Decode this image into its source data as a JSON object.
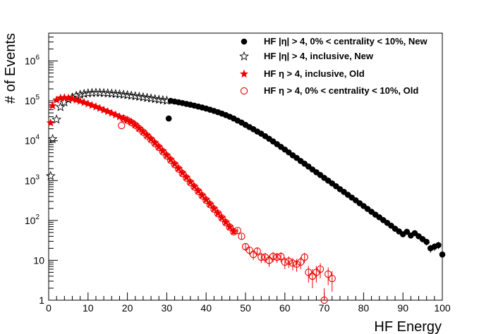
{
  "chart_data": {
    "type": "scatter",
    "xlabel": "HF Energy",
    "ylabel": "# of Events",
    "xlim": [
      0,
      100
    ],
    "ylim": [
      1,
      5000000
    ],
    "yscale": "log",
    "x_ticks": [
      "0",
      "10",
      "20",
      "30",
      "40",
      "50",
      "60",
      "70",
      "80",
      "90",
      "100"
    ],
    "y_ticks": [
      {
        "base": "1",
        "exp": ""
      },
      {
        "base": "10",
        "exp": ""
      },
      {
        "base": "10",
        "exp": "2"
      },
      {
        "base": "10",
        "exp": "3"
      },
      {
        "base": "10",
        "exp": "4"
      },
      {
        "base": "10",
        "exp": "5"
      },
      {
        "base": "10",
        "exp": "6"
      }
    ],
    "legend_position": "top-right",
    "colors": {
      "new": "#000000",
      "old": "#ee0000"
    },
    "series": [
      {
        "name": "HF |η| > 4, 0% < centrality < 10%, New",
        "marker": "filled-circle",
        "color": "#000000",
        "points": [
          [
            30.5,
            36000
          ],
          [
            31,
            100000
          ],
          [
            32,
            96000
          ],
          [
            33,
            92000
          ],
          [
            34,
            88000
          ],
          [
            35,
            84000
          ],
          [
            36,
            80000
          ],
          [
            37,
            76000
          ],
          [
            38,
            72000
          ],
          [
            39,
            68000
          ],
          [
            40,
            64000
          ],
          [
            41,
            60000
          ],
          [
            42,
            56000
          ],
          [
            43,
            52000
          ],
          [
            44,
            48000
          ],
          [
            45,
            44000
          ],
          [
            46,
            40000
          ],
          [
            47,
            36000
          ],
          [
            48,
            32000
          ],
          [
            49,
            28500
          ],
          [
            50,
            25000
          ],
          [
            51,
            22000
          ],
          [
            52,
            19500
          ],
          [
            53,
            17000
          ],
          [
            54,
            15000
          ],
          [
            55,
            13000
          ],
          [
            56,
            11200
          ],
          [
            57,
            9600
          ],
          [
            58,
            8200
          ],
          [
            59,
            7000
          ],
          [
            60,
            6000
          ],
          [
            61,
            5100
          ],
          [
            62,
            4300
          ],
          [
            63,
            3700
          ],
          [
            64,
            3100
          ],
          [
            65,
            2650
          ],
          [
            66,
            2250
          ],
          [
            67,
            1900
          ],
          [
            68,
            1620
          ],
          [
            69,
            1380
          ],
          [
            70,
            1170
          ],
          [
            71,
            1000
          ],
          [
            72,
            850
          ],
          [
            73,
            720
          ],
          [
            74,
            610
          ],
          [
            75,
            520
          ],
          [
            76,
            440
          ],
          [
            77,
            375
          ],
          [
            78,
            320
          ],
          [
            79,
            270
          ],
          [
            80,
            230
          ],
          [
            81,
            195
          ],
          [
            82,
            165
          ],
          [
            83,
            140
          ],
          [
            84,
            120
          ],
          [
            85,
            102
          ],
          [
            86,
            87
          ],
          [
            87,
            74
          ],
          [
            88,
            62
          ],
          [
            89,
            53
          ],
          [
            90,
            45
          ],
          [
            91,
            52
          ],
          [
            92,
            42
          ],
          [
            93,
            48
          ],
          [
            94,
            40
          ],
          [
            95,
            34
          ],
          [
            96,
            29
          ],
          [
            97,
            20
          ],
          [
            98,
            22
          ],
          [
            99,
            24
          ],
          [
            100,
            14
          ]
        ]
      },
      {
        "name": "HF |η| > 4, inclusive, New",
        "marker": "open-star",
        "color": "#000000",
        "points": [
          [
            0.5,
            1300
          ],
          [
            1,
            11000
          ],
          [
            2,
            34000
          ],
          [
            3,
            70000
          ],
          [
            4,
            92000
          ],
          [
            5,
            108000
          ],
          [
            6,
            122000
          ],
          [
            7,
            134000
          ],
          [
            8,
            143000
          ],
          [
            9,
            150000
          ],
          [
            10,
            155000
          ],
          [
            11,
            158000
          ],
          [
            12,
            160000
          ],
          [
            13,
            159000
          ],
          [
            14,
            157000
          ],
          [
            15,
            155000
          ],
          [
            16,
            152000
          ],
          [
            17,
            149000
          ],
          [
            18,
            146000
          ],
          [
            19,
            143000
          ],
          [
            20,
            139000
          ],
          [
            21,
            135000
          ],
          [
            22,
            131000
          ],
          [
            23,
            127000
          ],
          [
            24,
            123000
          ],
          [
            25,
            119000
          ],
          [
            26,
            115000
          ],
          [
            27,
            111000
          ],
          [
            28,
            107000
          ],
          [
            29,
            104000
          ],
          [
            30,
            101000
          ]
        ]
      },
      {
        "name": "HF η > 4, inclusive, Old",
        "marker": "filled-star",
        "color": "#ee0000",
        "points": [
          [
            0.5,
            28000
          ],
          [
            1,
            75000
          ],
          [
            2,
            105000
          ],
          [
            3,
            118000
          ],
          [
            4,
            121000
          ],
          [
            5,
            118000
          ],
          [
            6,
            112000
          ],
          [
            7,
            105000
          ],
          [
            8,
            98000
          ],
          [
            9,
            91000
          ],
          [
            10,
            84000
          ],
          [
            11,
            77000
          ],
          [
            12,
            71000
          ],
          [
            13,
            65000
          ],
          [
            14,
            59000
          ],
          [
            15,
            54000
          ],
          [
            16,
            49000
          ],
          [
            17,
            44500
          ],
          [
            18,
            40000
          ],
          [
            19,
            36500
          ],
          [
            20,
            33000
          ],
          [
            21,
            29500
          ],
          [
            22,
            25000
          ],
          [
            23,
            20500
          ],
          [
            24,
            16800
          ],
          [
            25,
            13600
          ],
          [
            26,
            11000
          ],
          [
            27,
            8800
          ],
          [
            28,
            7000
          ],
          [
            29,
            5500
          ],
          [
            30,
            4300
          ],
          [
            31,
            3350
          ],
          [
            32,
            2600
          ],
          [
            33,
            2000
          ],
          [
            34,
            1550
          ],
          [
            35,
            1200
          ],
          [
            36,
            920
          ],
          [
            37,
            710
          ],
          [
            38,
            550
          ],
          [
            39,
            425
          ],
          [
            40,
            330
          ],
          [
            41,
            255
          ],
          [
            42,
            197
          ],
          [
            43,
            152
          ],
          [
            44,
            117
          ],
          [
            45,
            90
          ],
          [
            46,
            69
          ],
          [
            47,
            53
          ]
        ]
      },
      {
        "name": "HF η > 4, 0% < centrality < 10%, Old",
        "marker": "open-circle",
        "color": "#ee0000",
        "points": [
          [
            18.5,
            24000
          ],
          [
            19,
            36000
          ],
          [
            20,
            32500
          ],
          [
            21,
            28500
          ],
          [
            22,
            24500
          ],
          [
            23,
            20000
          ],
          [
            24,
            16400
          ],
          [
            25,
            13200
          ],
          [
            26,
            10600
          ],
          [
            27,
            8500
          ],
          [
            28,
            6800
          ],
          [
            29,
            5300
          ],
          [
            30,
            4150
          ],
          [
            31,
            3250
          ],
          [
            32,
            2520
          ],
          [
            33,
            1950
          ],
          [
            34,
            1500
          ],
          [
            35,
            1160
          ],
          [
            36,
            890
          ],
          [
            37,
            690
          ],
          [
            38,
            535
          ],
          [
            39,
            415
          ],
          [
            40,
            322
          ],
          [
            41,
            250
          ],
          [
            42,
            193
          ],
          [
            43,
            149
          ],
          [
            44,
            115
          ],
          [
            45,
            88
          ],
          [
            46,
            68
          ],
          [
            47,
            52
          ],
          [
            48,
            56
          ],
          [
            49,
            40
          ],
          [
            50,
            22
          ],
          [
            51,
            18
          ],
          [
            52,
            14
          ],
          [
            53,
            17
          ],
          [
            54,
            12
          ],
          [
            55,
            12
          ],
          [
            56,
            10
          ],
          [
            57,
            12.5
          ],
          [
            58,
            12
          ],
          [
            59,
            12.5
          ],
          [
            60,
            9
          ],
          [
            61,
            9.5
          ],
          [
            62,
            8.5
          ],
          [
            63,
            8
          ],
          [
            64,
            9
          ],
          [
            65,
            12
          ],
          [
            66,
            5
          ],
          [
            67,
            4
          ],
          [
            68,
            5
          ],
          [
            69,
            6
          ],
          [
            70,
            1
          ],
          [
            71,
            4.5
          ],
          [
            72,
            3.5
          ]
        ]
      }
    ]
  }
}
